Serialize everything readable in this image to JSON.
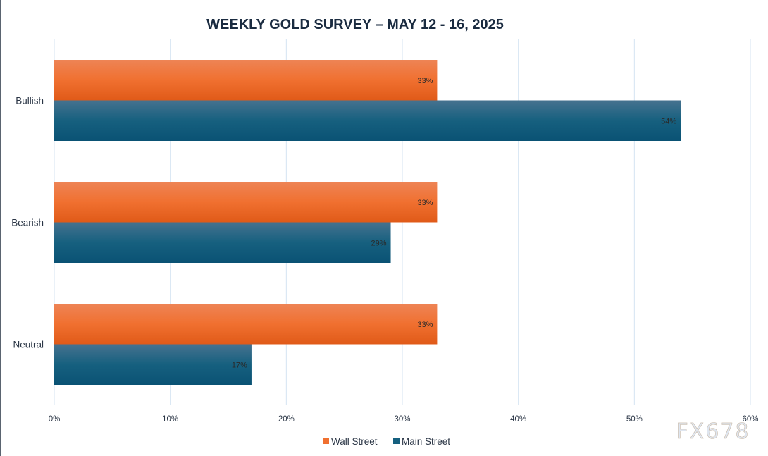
{
  "chart_data": {
    "type": "bar",
    "orientation": "horizontal",
    "title": "WEEKLY GOLD SURVEY – MAY 12 - 16, 2025",
    "categories": [
      "Bullish",
      "Bearish",
      "Neutral"
    ],
    "series": [
      {
        "name": "Wall Street",
        "values": [
          33,
          33,
          33
        ],
        "labels": [
          "33%",
          "33%",
          "33%"
        ],
        "color": "#f07030"
      },
      {
        "name": "Main Street",
        "values": [
          54,
          29,
          17
        ],
        "labels": [
          "54%",
          "29%",
          "17%"
        ],
        "color": "#15607f"
      }
    ],
    "xlim": [
      0,
      60
    ],
    "xticks": [
      "0%",
      "10%",
      "20%",
      "30%",
      "40%",
      "50%",
      "60%"
    ],
    "grid": "vertical",
    "legend": "bottom",
    "watermark": "FX678"
  }
}
